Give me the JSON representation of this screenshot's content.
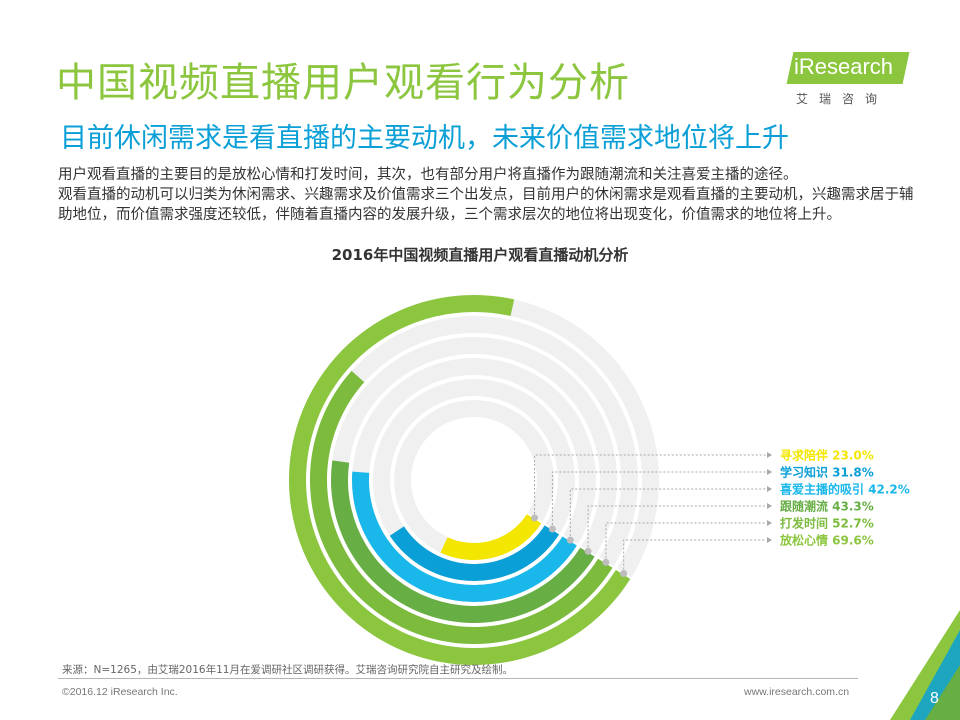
{
  "header": {
    "title": "中国视频直播用户观看行为分析",
    "subtitle": "目前休闲需求是看直播的主要动机，未来价值需求地位将上升"
  },
  "logo": {
    "name": "iResearch",
    "cn": "艾瑞咨询"
  },
  "body": {
    "paragraph1": "用户观看直播的主要目的是放松心情和打发时间，其次，也有部分用户将直播作为跟随潮流和关注喜爱主播的途径。",
    "paragraph2": "观看直播的动机可以归类为休闲需求、兴趣需求及价值需求三个出发点，目前用户的休闲需求是观看直播的主要动机，兴趣需求居于辅助地位，而价值需求强度还较低，伴随着直播内容的发展升级，三个需求层次的地位将出现变化，价值需求的地位将上升。"
  },
  "chart_data": {
    "type": "radial-bar",
    "title": "2016年中国视频直播用户观看直播动机分析",
    "unit": "%",
    "series": [
      {
        "name": "放松心情",
        "value": 69.6,
        "label": "放松心情 69.6%",
        "color": "#8cc63f"
      },
      {
        "name": "打发时间",
        "value": 52.7,
        "label": "打发时间 52.7%",
        "color": "#7cbb3c"
      },
      {
        "name": "跟随潮流",
        "value": 43.3,
        "label": "跟随潮流 43.3%",
        "color": "#67ae44"
      },
      {
        "name": "喜爱主播的吸引",
        "value": 42.2,
        "label": "喜爱主播的吸引 42.2%",
        "color": "#1ab7ea"
      },
      {
        "name": "学习知识",
        "value": 31.8,
        "label": "学习知识 31.8%",
        "color": "#0a9fd6"
      },
      {
        "name": "寻求陪伴",
        "value": 23.0,
        "label": "寻求陪伴 23.0%",
        "color": "#f3e600"
      }
    ],
    "track_color": "#f0f0f0"
  },
  "footer": {
    "source": "来源：N=1265，由艾瑞2016年11月在爱调研社区调研获得。艾瑞咨询研究院自主研究及绘制。",
    "copyright": "©2016.12 iResearch Inc.",
    "website": "www.iresearch.com.cn",
    "page": "8"
  },
  "theme": {
    "accent_green": "#8cc63f",
    "accent_blue": "#0a9fd6"
  }
}
